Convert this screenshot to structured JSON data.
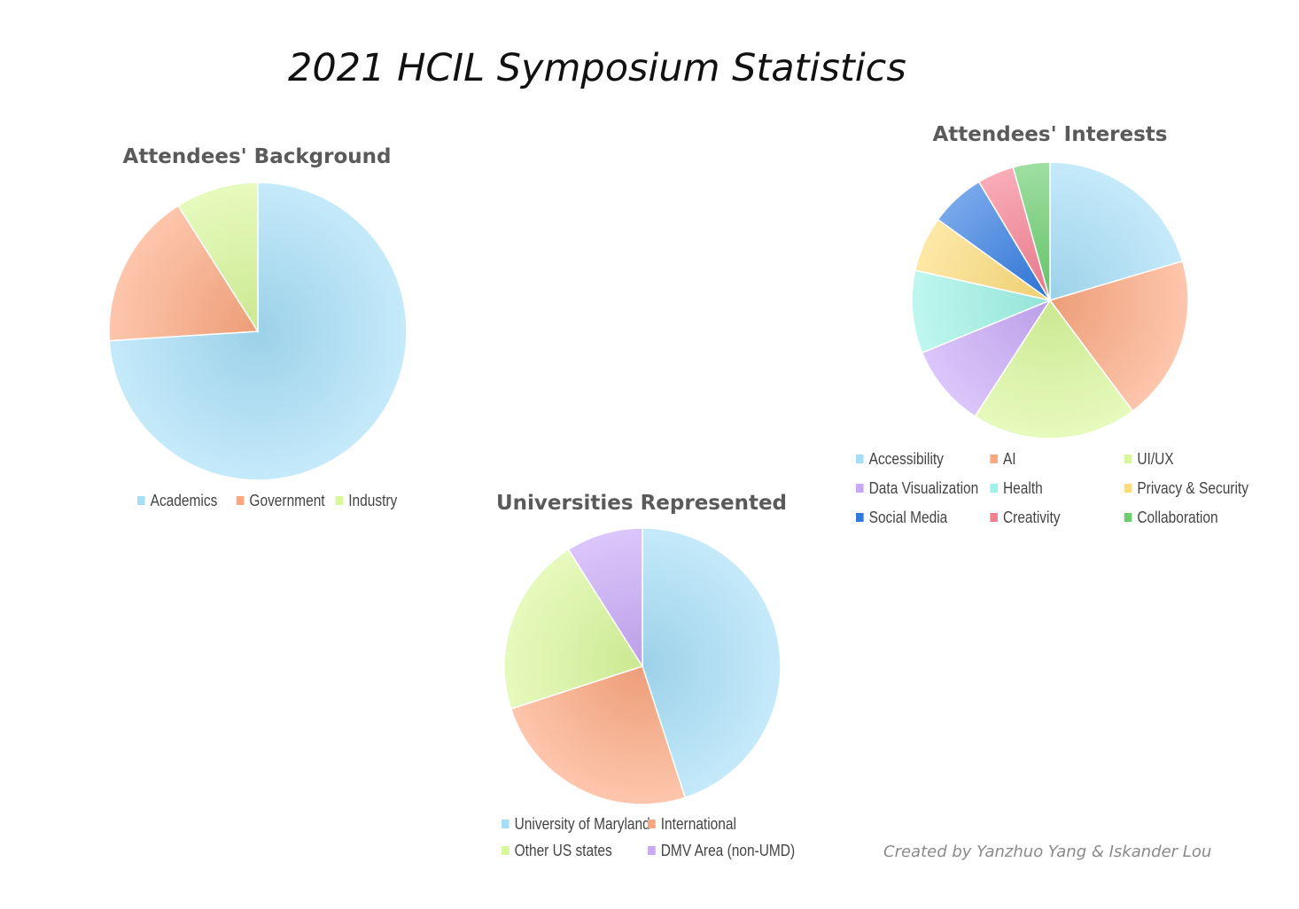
{
  "page": {
    "title": "2021 HCIL Symposium Statistics",
    "credit": "Created by Yanzhuo Yang & Iskander Lou"
  },
  "chart_data": [
    {
      "type": "pie",
      "title": "Attendees' Background",
      "legend_placement": "bottom",
      "categories": [
        "Academics",
        "Government",
        "Industry"
      ],
      "values": [
        74,
        17,
        9
      ],
      "colors": [
        "#a6def8",
        "#fca77f",
        "#d8f79a"
      ]
    },
    {
      "type": "pie",
      "title": "Universities Represented",
      "legend_placement": "bottom",
      "categories": [
        "University of Maryland",
        "International",
        "Other US states",
        "DMV Area (non-UMD)"
      ],
      "values": [
        45,
        25,
        21,
        9
      ],
      "colors": [
        "#a6def8",
        "#fca77f",
        "#d8f79a",
        "#c8a8f8"
      ]
    },
    {
      "type": "pie",
      "title": "Attendees' Interests",
      "legend_placement": "bottom",
      "categories": [
        "Accessibility",
        "AI",
        "UI/UX",
        "Data Visualization",
        "Health",
        "Privacy & Security",
        "Social Media",
        "Creativity",
        "Collaboration"
      ],
      "values": [
        19,
        18,
        18,
        9,
        9,
        6,
        6,
        4,
        4
      ],
      "colors": [
        "#a6def8",
        "#fca77f",
        "#d8f79a",
        "#c8a8f8",
        "#9cf2e6",
        "#fcdb78",
        "#2f79e0",
        "#f57f92",
        "#6acd6e"
      ]
    }
  ]
}
